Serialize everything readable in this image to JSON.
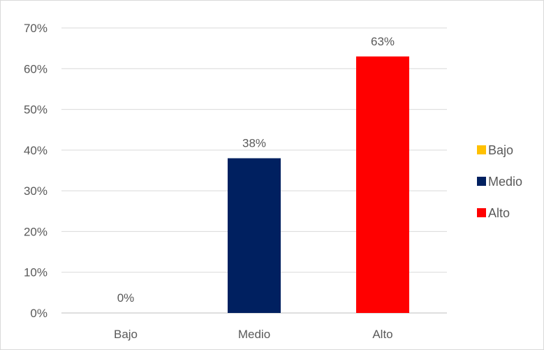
{
  "chart_data": {
    "type": "bar",
    "categories": [
      "Bajo",
      "Medio",
      "Alto"
    ],
    "values": [
      0,
      38,
      63
    ],
    "data_labels": [
      "0%",
      "38%",
      "63%"
    ],
    "colors": [
      "#FFC000",
      "#002060",
      "#FF0000"
    ],
    "ylim": [
      0,
      70
    ],
    "y_ticks": [
      0,
      10,
      20,
      30,
      40,
      50,
      60,
      70
    ],
    "y_tick_labels": [
      "0%",
      "10%",
      "20%",
      "30%",
      "40%",
      "50%",
      "60%",
      "70%"
    ],
    "grid": true,
    "legend_position": "right",
    "legend": [
      {
        "label": "Bajo",
        "color": "#FFC000"
      },
      {
        "label": "Medio",
        "color": "#002060"
      },
      {
        "label": "Alto",
        "color": "#FF0000"
      }
    ]
  }
}
